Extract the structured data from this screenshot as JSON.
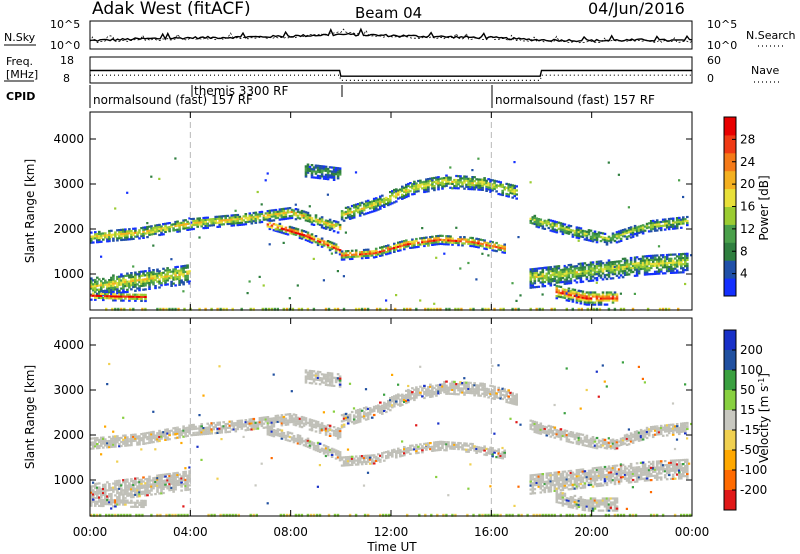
{
  "header": {
    "station": "Adak West (fitACF)",
    "beam": "Beam 04",
    "date": "04/Jun/2016"
  },
  "status_panels": {
    "nsky_label": "N.Sky",
    "nsearch_label": "N.Search",
    "freq_label_1": "Freq.",
    "freq_label_2": "[MHz]",
    "nave_label": "Nave",
    "cpid_label": "CPID",
    "noise_ticks": [
      "10^5",
      "10^0"
    ],
    "freq_ticks": [
      "18",
      "8"
    ],
    "nave_ticks": [
      "60",
      "0"
    ],
    "cpid_segments": [
      {
        "label": "normalsound (fast) 157 RF"
      },
      {
        "label": "themis 3300 RF"
      },
      {
        "label": "normalsound (fast) 157 RF"
      }
    ]
  },
  "x_axis": {
    "title": "Time UT",
    "ticks": [
      "00:00",
      "04:00",
      "08:00",
      "12:00",
      "16:00",
      "20:00",
      "00:00"
    ]
  },
  "colors": {
    "power": [
      "#1430ff",
      "#2050a8",
      "#2f7f3f",
      "#4aa04a",
      "#9bcc32",
      "#e8e03a",
      "#f4b020",
      "#f57a18",
      "#f03a14",
      "#e80000"
    ],
    "velocity": [
      "#e01818",
      "#ff6a00",
      "#ffa800",
      "#f0d050",
      "#c8c8c0",
      "#88d040",
      "#3aa040",
      "#2050a0",
      "#1830c8"
    ],
    "ground_scatter": "#c0c0b8"
  },
  "chart_data": [
    {
      "type": "line",
      "title": "",
      "panel": "noise",
      "x": [
        0,
        2,
        4,
        6,
        8,
        10,
        12,
        14,
        16,
        18,
        20,
        22,
        24
      ],
      "series": [
        {
          "name": "N.Sky",
          "values": [
            1.5,
            1.8,
            2.0,
            2.1,
            2.3,
            2.6,
            2.4,
            2.2,
            2.0,
            1.6,
            1.5,
            1.6,
            1.5
          ]
        },
        {
          "name": "N.Search",
          "values": [
            1.3,
            1.6,
            1.8,
            1.9,
            2.1,
            2.9,
            2.2,
            2.0,
            1.8,
            1.4,
            1.3,
            1.4,
            1.3
          ]
        }
      ],
      "xlim": [
        0,
        24
      ],
      "ylim": [
        0,
        5
      ]
    },
    {
      "type": "line",
      "title": "",
      "panel": "freq_nave",
      "x": [
        0,
        4.0,
        9.95,
        10.0,
        17.95,
        18.0,
        24
      ],
      "series": [
        {
          "name": "Freq.",
          "values": [
            12.8,
            12.8,
            12.8,
            10.6,
            10.6,
            12.8,
            12.8
          ]
        },
        {
          "name": "Nave",
          "values": [
            18,
            18,
            18,
            6,
            6,
            18,
            18
          ]
        }
      ],
      "xlim": [
        0,
        24
      ]
    },
    {
      "type": "heatmap",
      "title": "",
      "panel": "power",
      "ylabel": "Slant Range [km]",
      "xlabel": "Time UT",
      "colorbar_label": "Power [dB]",
      "colorbar_ticks": [
        4,
        8,
        12,
        16,
        20,
        24,
        28
      ],
      "ylim": [
        200,
        4600
      ],
      "y_ticks": [
        1000,
        2000,
        3000,
        4000
      ],
      "xlim": [
        0,
        24
      ],
      "bands": [
        {
          "t0": 0.0,
          "t1": 10.0,
          "r0": [
            1800,
            1900,
            2100,
            2200,
            2350,
            2000
          ],
          "width": 250,
          "peak_db": 18
        },
        {
          "t0": 7.0,
          "t1": 10.0,
          "r0": [
            2100,
            1850,
            1500
          ],
          "width": 200,
          "peak_db": 28
        },
        {
          "t0": 10.0,
          "t1": 16.5,
          "r0": [
            1400,
            1450,
            1650,
            1750,
            1700,
            1550
          ],
          "width": 200,
          "peak_db": 26
        },
        {
          "t0": 10.0,
          "t1": 17.0,
          "r0": [
            2300,
            2550,
            2900,
            3050,
            3000,
            2800
          ],
          "width": 300,
          "peak_db": 16
        },
        {
          "t0": 0.0,
          "t1": 4.0,
          "r0": [
            700,
            800,
            900,
            1000
          ],
          "width": 450,
          "peak_db": 16
        },
        {
          "t0": 0.0,
          "t1": 2.2,
          "r0": [
            500,
            480,
            470
          ],
          "width": 180,
          "peak_db": 28
        },
        {
          "t0": 17.5,
          "t1": 23.8,
          "r0": [
            900,
            1000,
            1100,
            1200,
            1250
          ],
          "width": 450,
          "peak_db": 14
        },
        {
          "t0": 18.5,
          "t1": 21.0,
          "r0": [
            600,
            450,
            450
          ],
          "width": 300,
          "peak_db": 28
        },
        {
          "t0": 17.5,
          "t1": 23.8,
          "r0": [
            2200,
            1950,
            1750,
            2050,
            2150
          ],
          "width": 250,
          "peak_db": 14
        },
        {
          "t0": 8.5,
          "t1": 10.0,
          "r0": [
            3300,
            3200
          ],
          "width": 300,
          "peak_db": 8
        }
      ]
    },
    {
      "type": "heatmap",
      "title": "",
      "panel": "velocity",
      "ylabel": "Slant Range [km]",
      "xlabel": "Time UT",
      "colorbar_label": "Velocity [m s^-1]",
      "colorbar_ticks": [
        200,
        100,
        50,
        15,
        -15,
        -50,
        -100,
        -200
      ],
      "ylim": [
        200,
        4600
      ],
      "y_ticks": [
        1000,
        2000,
        3000,
        4000
      ],
      "xlim": [
        0,
        24
      ],
      "note": "mostly ground scatter (grey) following the same bands as the power panel"
    }
  ]
}
